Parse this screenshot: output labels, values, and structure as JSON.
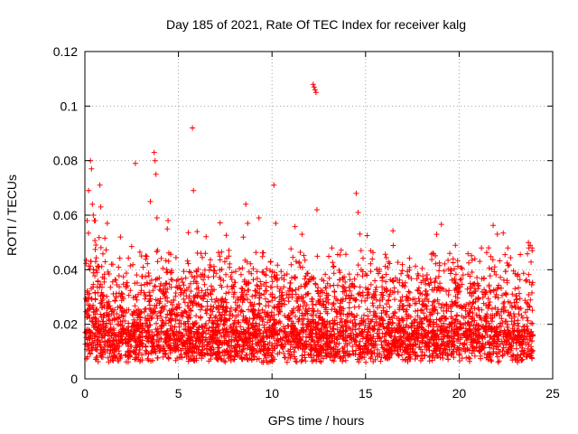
{
  "chart_data": {
    "type": "scatter",
    "title": "Day 185 of 2021, Rate Of TEC Index for receiver kalg",
    "xlabel": "GPS time / hours",
    "ylabel": "ROTI / TECUs",
    "xlim": [
      0,
      25
    ],
    "ylim": [
      0,
      0.12
    ],
    "xticks": [
      "0",
      "5",
      "10",
      "15",
      "20",
      "25"
    ],
    "yticks": [
      "0",
      "0.02",
      "0.04",
      "0.06",
      "0.08",
      "0.1",
      "0.12"
    ],
    "marker": "+",
    "color": "#ff0000",
    "grid": true,
    "series": [
      {
        "name": "ROTI",
        "x": [
          0.2,
          0.3,
          0.35,
          0.4,
          0.45,
          0.5,
          0.8,
          0.85,
          2.7,
          3.5,
          3.7,
          3.75,
          3.8,
          3.85,
          5.75,
          5.8,
          6.0,
          8.6,
          8.7,
          10.1,
          10.2,
          12.2,
          12.25,
          12.3,
          12.35,
          12.4,
          14.5,
          14.6,
          18.8,
          19.8,
          22.6,
          23.7,
          23.8,
          23.9,
          6.2,
          9.3,
          13.2,
          15.6,
          17.3,
          20.6,
          21.9,
          1.9,
          4.4,
          7.7,
          11.6,
          16.6
        ],
        "y": [
          0.069,
          0.08,
          0.077,
          0.064,
          0.06,
          0.058,
          0.071,
          0.063,
          0.079,
          0.065,
          0.083,
          0.08,
          0.075,
          0.059,
          0.092,
          0.069,
          0.054,
          0.064,
          0.057,
          0.071,
          0.057,
          0.108,
          0.107,
          0.106,
          0.105,
          0.062,
          0.068,
          0.061,
          0.053,
          0.049,
          0.048,
          0.05,
          0.049,
          0.047,
          0.046,
          0.059,
          0.048,
          0.04,
          0.032,
          0.035,
          0.041,
          0.052,
          0.055,
          0.045,
          0.053,
          0.037
        ]
      }
    ]
  }
}
